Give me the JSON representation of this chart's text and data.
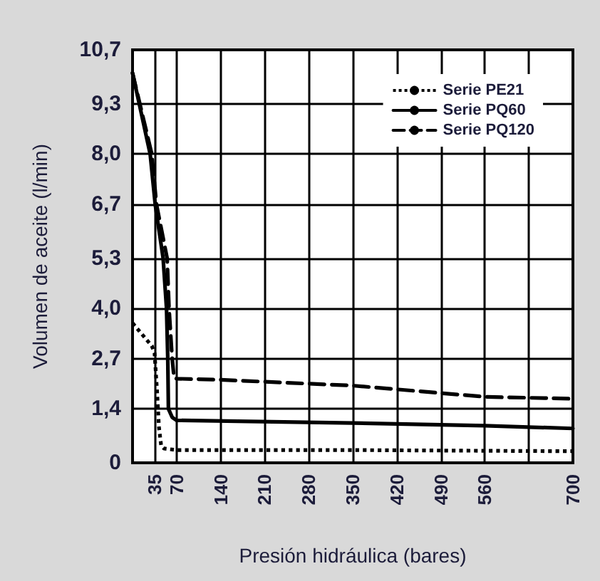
{
  "chart_data": {
    "type": "line",
    "xlabel": "Presión hidráulica (bares)",
    "ylabel": "Volumen de aceite (l/min)",
    "xlim": [
      0,
      700
    ],
    "xticks": [
      35,
      70,
      140,
      210,
      280,
      350,
      420,
      490,
      560,
      {
        "value": 630,
        "label": null
      },
      700
    ],
    "ylim": [
      0,
      10.7
    ],
    "yticks": [
      0,
      {
        "value": 1.4,
        "label": "1,4"
      },
      {
        "value": 2.7,
        "label": "2,7"
      },
      {
        "value": 4.0,
        "label": "4,0"
      },
      {
        "value": 5.3,
        "label": "5,3"
      },
      {
        "value": 6.7,
        "label": "6,7"
      },
      {
        "value": 8.0,
        "label": "8,0"
      },
      {
        "value": 9.3,
        "label": "9,3"
      },
      {
        "value": 10.7,
        "label": "10,7"
      }
    ],
    "grid": true,
    "legend": "top right",
    "marker": "none",
    "series": [
      {
        "name": "Serie PE21",
        "color": "#000000",
        "line_style": "dotted",
        "x": [
          0,
          30.6,
          35,
          39,
          42,
          45.5,
          50,
          70,
          350,
          700
        ],
        "values": [
          3.62,
          3.03,
          2.84,
          1.85,
          0.92,
          0.44,
          0.37,
          0.33,
          0.33,
          0.3
        ]
      },
      {
        "name": "Serie PQ60",
        "color": "#000000",
        "line_style": "solid",
        "x": [
          0,
          28,
          36,
          48.6,
          54,
          56,
          57,
          63,
          70,
          350,
          560,
          700
        ],
        "values": [
          10.1,
          8.0,
          6.7,
          5.3,
          4.0,
          2.7,
          1.4,
          1.18,
          1.1,
          1.03,
          0.96,
          0.89
        ]
      },
      {
        "name": "Serie PQ120",
        "color": "#000000",
        "line_style": "dashed",
        "x": [
          0,
          30.6,
          38,
          55,
          58,
          63,
          66,
          70,
          140,
          350,
          560,
          700
        ],
        "values": [
          10.1,
          8.0,
          6.7,
          5.3,
          4.0,
          2.7,
          2.2,
          2.18,
          2.15,
          2.0,
          1.71,
          1.66
        ]
      }
    ]
  }
}
